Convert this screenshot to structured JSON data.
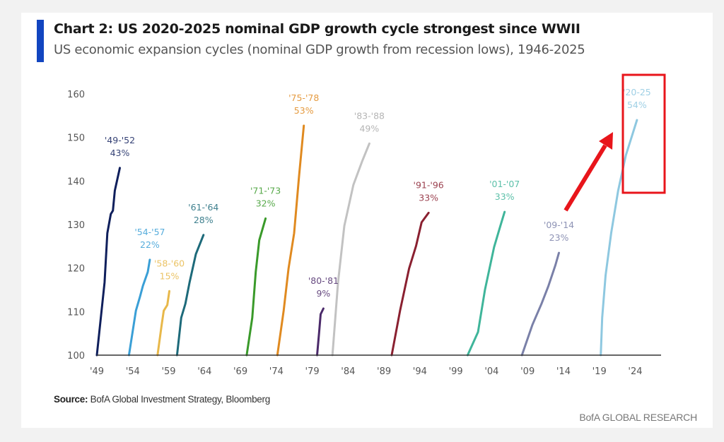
{
  "header": {
    "title": "Chart 2: US 2020-2025 nominal GDP growth cycle strongest since WWII",
    "subtitle": "US economic expansion cycles (nominal GDP growth from recession lows), 1946-2025",
    "accent_color": "#1245c0"
  },
  "footer": {
    "source_label": "Source:",
    "source_text": " BofA Global Investment Strategy, Bloomberg",
    "brand": "BofA GLOBAL RESEARCH"
  },
  "annotation": {
    "highlight_color": "#e8151b",
    "highlight_target": "'20-25",
    "arrow": "pointing to highlighted cycle"
  },
  "chart_data": {
    "type": "line",
    "title": "Chart 2: US 2020-2025 nominal GDP growth cycle strongest since WWII",
    "subtitle": "US economic expansion cycles (nominal GDP growth from recession lows), 1946-2025",
    "xlabel": "",
    "ylabel": "",
    "xlim": [
      1949,
      2027.6
    ],
    "ylim": [
      100,
      160
    ],
    "x_tick_labels": [
      "'49",
      "'54",
      "'59",
      "'64",
      "'69",
      "'74",
      "'79",
      "'84",
      "'89",
      "'94",
      "'99",
      "'04",
      "'09",
      "'14",
      "'19",
      "'24"
    ],
    "x_tick_values": [
      1949,
      1954,
      1959,
      1964,
      1969,
      1974,
      1979,
      1984,
      1989,
      1994,
      1999,
      2004,
      2009,
      2014,
      2019,
      2024
    ],
    "y_ticks": [
      100,
      110,
      120,
      130,
      140,
      150,
      160
    ],
    "grid": false,
    "legend": "none (direct labels)",
    "series": [
      {
        "name": "'49-'52",
        "growth_label": "43%",
        "color": "#0f1f5c",
        "x": [
          1949.0,
          1950.07,
          1950.46,
          1950.94,
          1951.24,
          1951.5,
          1952.2
        ],
        "y": [
          100,
          116.7,
          128.0,
          132.4,
          133.2,
          137.8,
          143.0
        ]
      },
      {
        "name": "'54-'57",
        "growth_label": "22%",
        "color": "#3a9fd6",
        "x": [
          1953.47,
          1954.44,
          1955.02,
          1955.41,
          1956.09,
          1956.38
        ],
        "y": [
          100,
          110.2,
          113.5,
          115.9,
          119.1,
          121.9
        ]
      },
      {
        "name": "'58-'60",
        "growth_label": "15%",
        "color": "#e8b84a",
        "x": [
          1957.45,
          1958.03,
          1958.32,
          1958.81,
          1959.1
        ],
        "y": [
          100,
          107,
          110.2,
          111.5,
          114.7
        ]
      },
      {
        "name": "'61-'64",
        "growth_label": "28%",
        "color": "#1d6a7a",
        "x": [
          1960.17,
          1960.75,
          1961.33,
          1961.91,
          1962.79,
          1963.85
        ],
        "y": [
          100,
          108.6,
          111.8,
          116.7,
          123.2,
          127.6
        ]
      },
      {
        "name": "'71-'73",
        "growth_label": "32%",
        "color": "#3a9a2a",
        "x": [
          1969.87,
          1970.65,
          1971.13,
          1971.62,
          1972.5
        ],
        "y": [
          100,
          108.6,
          119.1,
          126.4,
          131.4
        ]
      },
      {
        "name": "'75-'78",
        "growth_label": "53%",
        "color": "#e08a20",
        "x": [
          1974.15,
          1975.02,
          1975.7,
          1976.48,
          1977.16,
          1977.83
        ],
        "y": [
          100,
          110.2,
          119.9,
          128.0,
          141.0,
          152.7
        ]
      },
      {
        "name": "'80-'81",
        "growth_label": "9%",
        "color": "#4b2a6a",
        "x": [
          1979.68,
          1979.97,
          1980.17,
          1980.56
        ],
        "y": [
          100,
          105.3,
          109.4,
          110.7
        ]
      },
      {
        "name": "'83-'88",
        "growth_label": "49%",
        "color": "#c2c2c2",
        "x": [
          1981.82,
          1982.6,
          1983.47,
          1984.73,
          1986.0,
          1986.96
        ],
        "y": [
          100,
          116.7,
          129.7,
          139.1,
          144.7,
          148.6
        ]
      },
      {
        "name": "'91-'96",
        "growth_label": "33%",
        "color": "#8a2030",
        "x": [
          1990.07,
          1991.24,
          1992.5,
          1993.47,
          1994.24,
          1995.21
        ],
        "y": [
          100,
          110.2,
          119.9,
          125.1,
          130.5,
          132.7
        ]
      },
      {
        "name": "'01-'07",
        "growth_label": "33%",
        "color": "#3fb59a",
        "x": [
          2000.65,
          2002.1,
          2003.07,
          2004.34,
          2005.21,
          2005.8
        ],
        "y": [
          100,
          105.3,
          115.1,
          124.8,
          129.7,
          132.9
        ]
      },
      {
        "name": "'09-'14",
        "growth_label": "23%",
        "color": "#7a80a8",
        "x": [
          2008.22,
          2009.68,
          2010.94,
          2011.91,
          2012.88,
          2013.37
        ],
        "y": [
          100,
          107,
          111.8,
          115.9,
          120.7,
          123.5
        ]
      },
      {
        "name": "'20-25",
        "growth_label": "54%",
        "color": "#8ec8e0",
        "x": [
          2019.2,
          2019.4,
          2019.87,
          2020.65,
          2021.62,
          2022.69,
          2024.24
        ],
        "y": [
          100,
          108.6,
          118.3,
          128.0,
          137.8,
          145.9,
          154.0
        ]
      }
    ]
  }
}
